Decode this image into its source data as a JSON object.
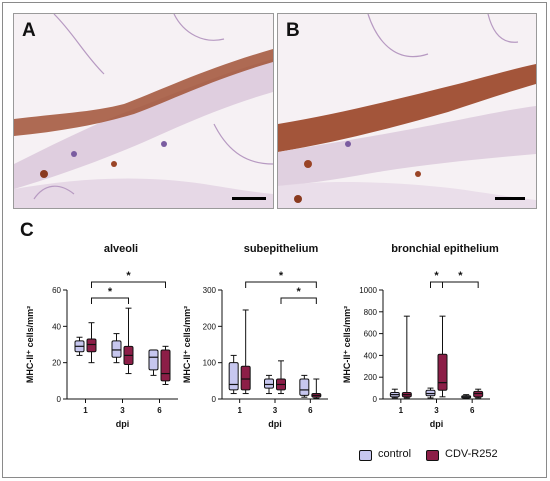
{
  "panels": {
    "a_label": "A",
    "b_label": "B",
    "c_label": "C"
  },
  "colors": {
    "control": "#c7c7ef",
    "cdv": "#8c1e47",
    "tissue_bg": "#efe6ec",
    "stain_purple": "#b79ac2",
    "stain_brown": "#9a4426"
  },
  "legend": {
    "control_label": "control",
    "cdv_label": "CDV-R252"
  },
  "chart_data": [
    {
      "type": "box",
      "title": "alveoli",
      "xlabel": "dpi",
      "ylabel": "MHC-II⁺ cells/mm²",
      "categories": [
        "1",
        "3",
        "6"
      ],
      "ylim": [
        0,
        60
      ],
      "yticks": [
        0,
        20,
        40,
        60
      ],
      "series": [
        {
          "name": "control",
          "boxes": [
            {
              "min": 24,
              "q1": 26,
              "median": 29,
              "q3": 32,
              "max": 34
            },
            {
              "min": 20,
              "q1": 23,
              "median": 27,
              "q3": 32,
              "max": 36
            },
            {
              "min": 13,
              "q1": 16,
              "median": 23,
              "q3": 27,
              "max": 27
            }
          ]
        },
        {
          "name": "CDV-R252",
          "boxes": [
            {
              "min": 20,
              "q1": 26,
              "median": 30,
              "q3": 33,
              "max": 42
            },
            {
              "min": 14,
              "q1": 19,
              "median": 24,
              "q3": 29,
              "max": 50
            },
            {
              "min": 8,
              "q1": 10,
              "median": 14,
              "q3": 27,
              "max": 29
            }
          ]
        }
      ],
      "significance": [
        {
          "from": "1",
          "to": "3",
          "label": "*"
        },
        {
          "from": "1",
          "to": "6",
          "label": "*"
        }
      ]
    },
    {
      "type": "box",
      "title": "subepithelium",
      "xlabel": "dpi",
      "ylabel": "MHC-II⁺ cells/mm²",
      "categories": [
        "1",
        "3",
        "6"
      ],
      "ylim": [
        0,
        300
      ],
      "yticks": [
        0,
        100,
        200,
        300
      ],
      "series": [
        {
          "name": "control",
          "boxes": [
            {
              "min": 15,
              "q1": 25,
              "median": 40,
              "q3": 100,
              "max": 120
            },
            {
              "min": 15,
              "q1": 30,
              "median": 40,
              "q3": 55,
              "max": 65
            },
            {
              "min": 5,
              "q1": 10,
              "median": 25,
              "q3": 55,
              "max": 65
            }
          ]
        },
        {
          "name": "CDV-R252",
          "boxes": [
            {
              "min": 15,
              "q1": 25,
              "median": 55,
              "q3": 90,
              "max": 245
            },
            {
              "min": 15,
              "q1": 25,
              "median": 40,
              "q3": 55,
              "max": 105
            },
            {
              "min": 2,
              "q1": 5,
              "median": 10,
              "q3": 15,
              "max": 55
            }
          ]
        }
      ],
      "significance": [
        {
          "from": "1",
          "to": "6",
          "label": "*"
        },
        {
          "from": "3",
          "to": "6",
          "label": "*"
        }
      ]
    },
    {
      "type": "box",
      "title": "bronchial epithelium",
      "xlabel": "dpi",
      "ylabel": "MHC-II⁺ cells/mm²",
      "categories": [
        "1",
        "3",
        "6"
      ],
      "ylim": [
        0,
        1000
      ],
      "yticks": [
        0,
        200,
        400,
        600,
        800,
        1000
      ],
      "series": [
        {
          "name": "control",
          "boxes": [
            {
              "min": 10,
              "q1": 20,
              "median": 40,
              "q3": 60,
              "max": 90
            },
            {
              "min": 10,
              "q1": 30,
              "median": 50,
              "q3": 80,
              "max": 100
            },
            {
              "min": 5,
              "q1": 10,
              "median": 20,
              "q3": 30,
              "max": 40
            }
          ]
        },
        {
          "name": "CDV-R252",
          "boxes": [
            {
              "min": 10,
              "q1": 20,
              "median": 40,
              "q3": 60,
              "max": 760
            },
            {
              "min": 20,
              "q1": 80,
              "median": 150,
              "q3": 410,
              "max": 760
            },
            {
              "min": 10,
              "q1": 20,
              "median": 50,
              "q3": 70,
              "max": 90
            }
          ]
        }
      ],
      "significance": [
        {
          "from": "3",
          "within": true,
          "label": "*"
        },
        {
          "from": "3",
          "to": "6",
          "label": "*"
        }
      ]
    }
  ]
}
